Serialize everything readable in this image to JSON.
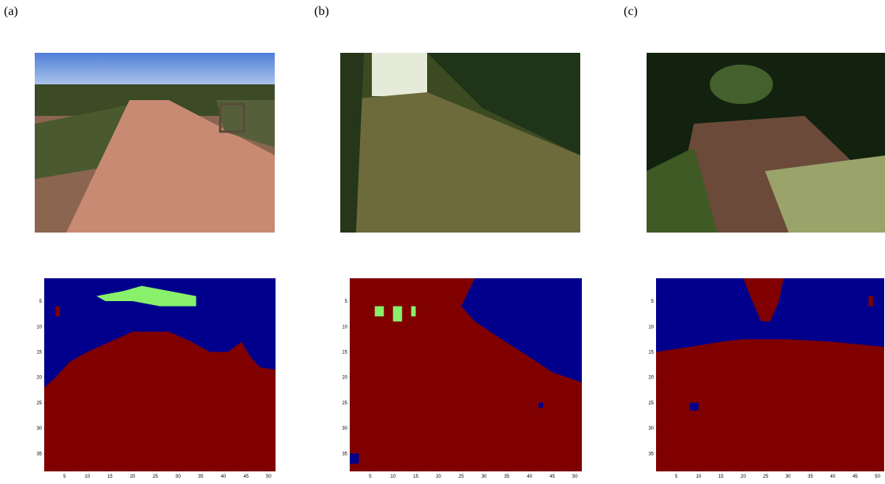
{
  "panels": [
    {
      "label": "(a)",
      "xlim": [
        0.5,
        51.5
      ],
      "ylim": [
        0.5,
        38.5
      ],
      "xticks": [
        5,
        10,
        15,
        20,
        25,
        30,
        35,
        40,
        45,
        50
      ],
      "yticks": [
        5,
        10,
        15,
        20,
        25,
        30,
        35
      ]
    },
    {
      "label": "(b)",
      "xlim": [
        0.5,
        51.5
      ],
      "ylim": [
        0.5,
        38.5
      ],
      "xticks": [
        5,
        10,
        15,
        20,
        25,
        30,
        35,
        40,
        45,
        50
      ],
      "yticks": [
        5,
        10,
        15,
        20,
        25,
        30,
        35
      ]
    },
    {
      "label": "(c)",
      "xlim": [
        0.5,
        51.5
      ],
      "ylim": [
        0.5,
        38.5
      ],
      "xticks": [
        5,
        10,
        15,
        20,
        25,
        30,
        35,
        40,
        45,
        50
      ],
      "yticks": [
        5,
        10,
        15,
        20,
        25,
        30,
        35
      ]
    }
  ]
}
